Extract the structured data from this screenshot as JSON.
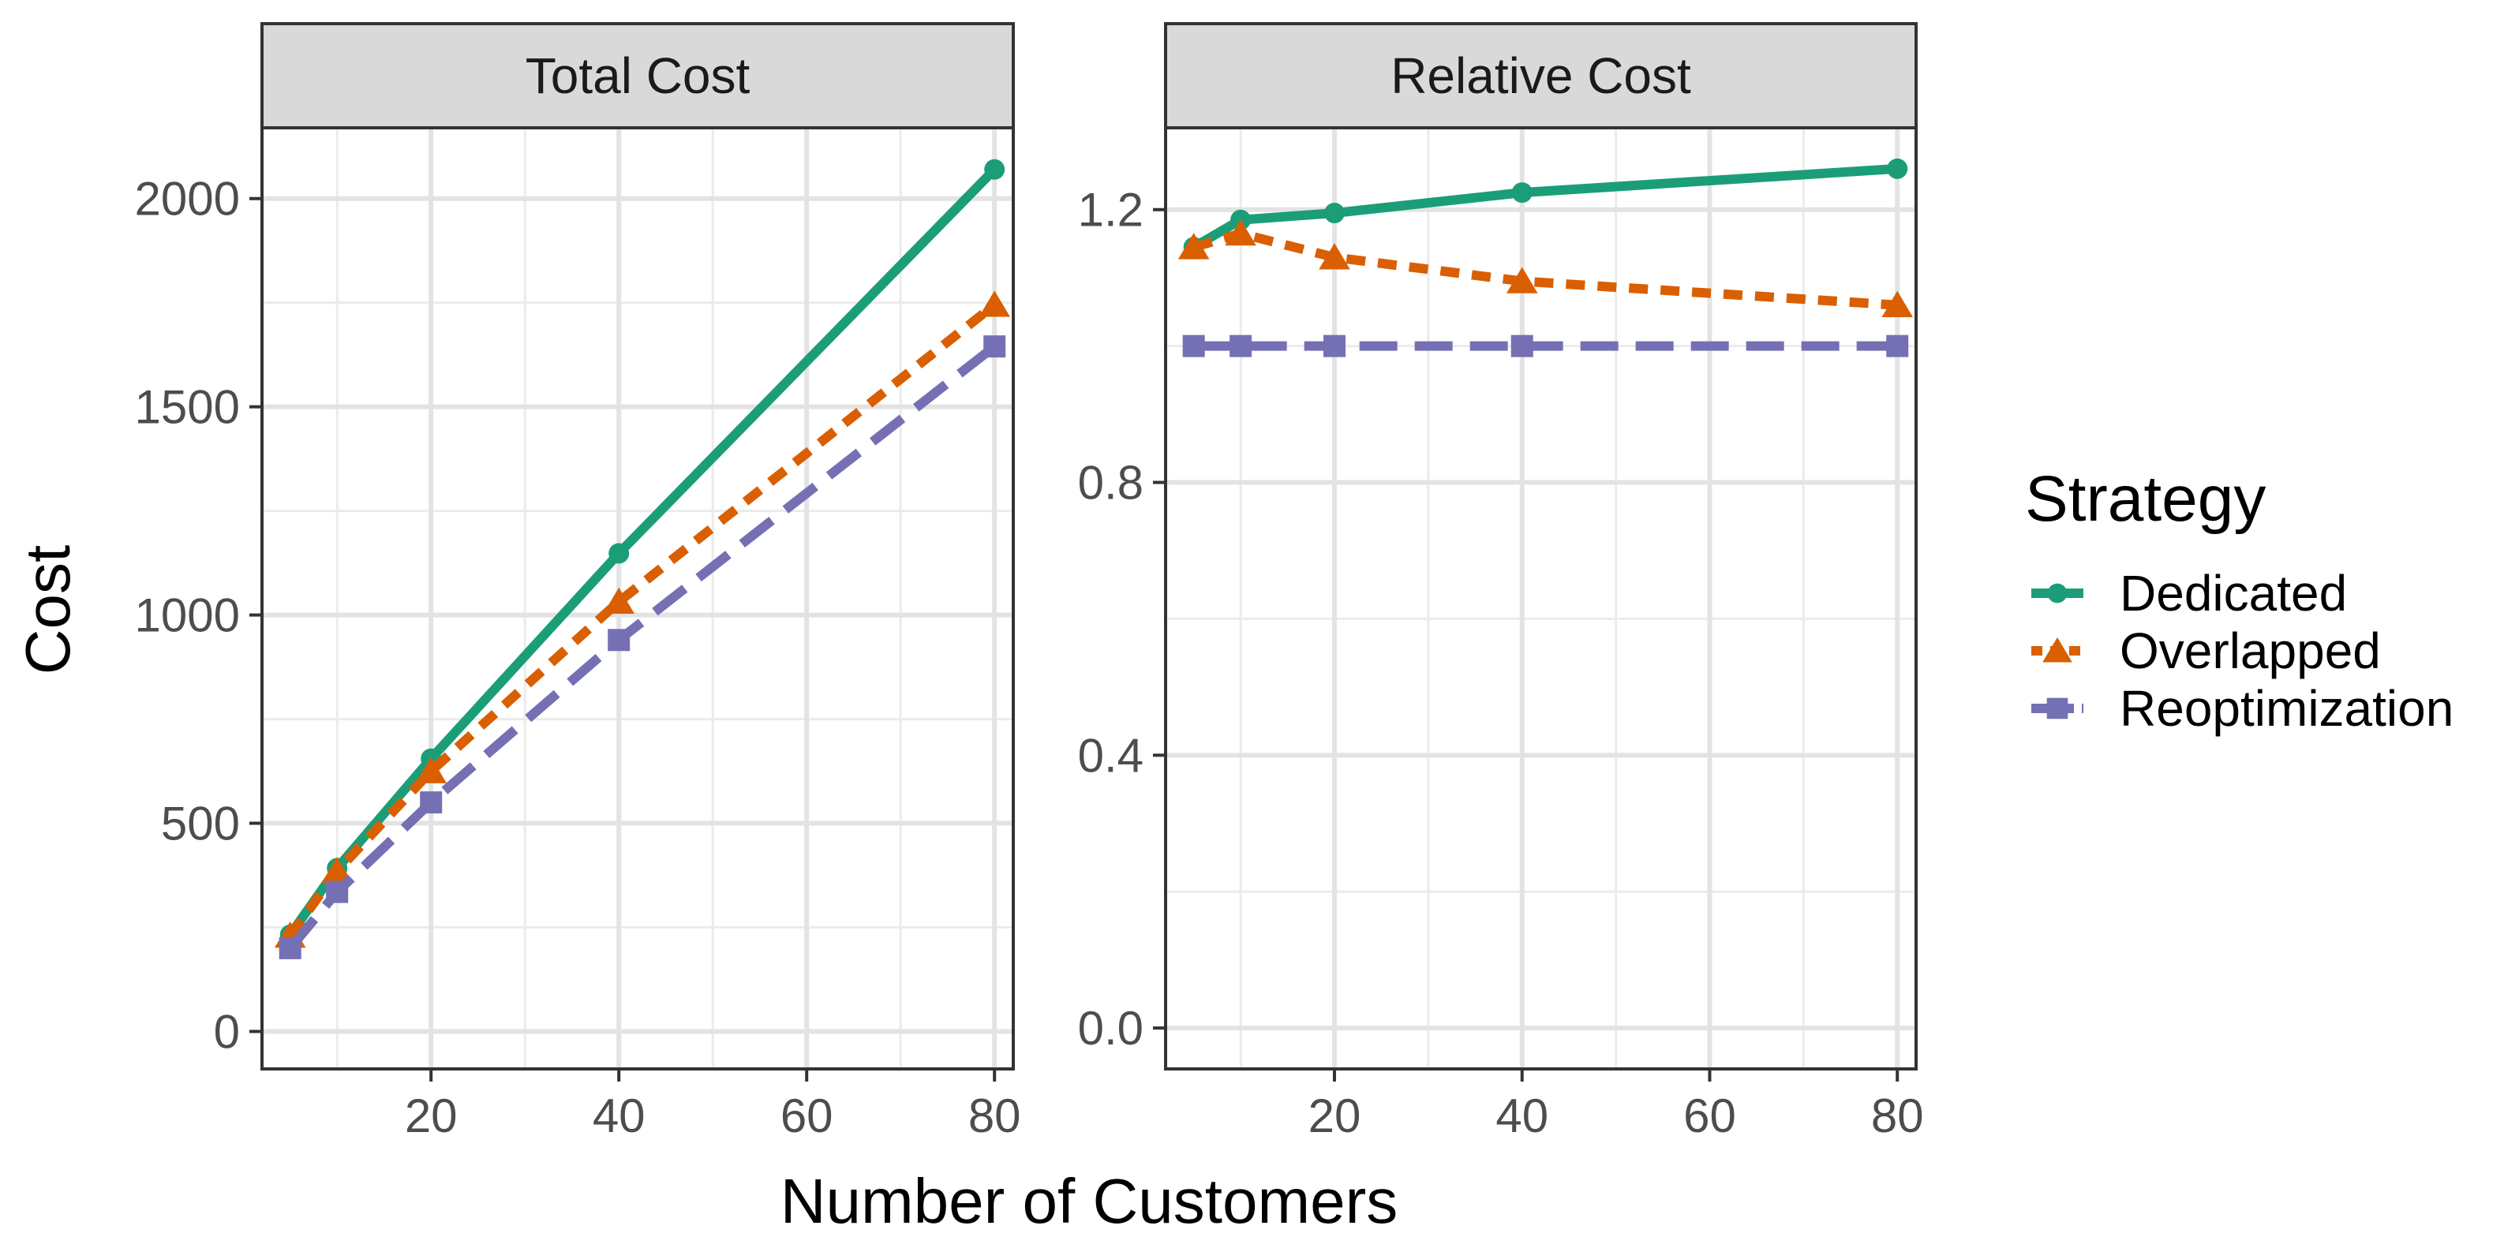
{
  "chart_data": {
    "type": "line",
    "xlabel": "Number of Customers",
    "ylabel": "Cost",
    "legend": {
      "title": "Strategy",
      "placement": "right",
      "entries": [
        "Dedicated",
        "Overlapped",
        "Reoptimization"
      ]
    },
    "colors": {
      "Dedicated": "#1b9e77",
      "Overlapped": "#d95f02",
      "Reoptimization": "#7570b3"
    },
    "grid": true,
    "x": [
      5,
      10,
      20,
      40,
      80
    ],
    "xlim": [
      2,
      82
    ],
    "x_ticks": [
      20,
      40,
      60,
      80
    ],
    "panels": [
      {
        "title": "Total Cost",
        "ylim": [
          -90,
          2170
        ],
        "y_ticks": [
          0,
          500,
          1000,
          1500,
          2000
        ],
        "y_tick_labels": [
          "0",
          "500",
          "1000",
          "1500",
          "2000"
        ],
        "series": [
          {
            "name": "Dedicated",
            "values": [
              232,
              392,
              655,
              1148,
              2070
            ]
          },
          {
            "name": "Overlapped",
            "values": [
              230,
              385,
              625,
              1032,
              1745
            ]
          },
          {
            "name": "Reoptimization",
            "values": [
              200,
              335,
              550,
              940,
              1645
            ]
          }
        ]
      },
      {
        "title": "Relative Cost",
        "ylim": [
          -0.06,
          1.32
        ],
        "y_ticks": [
          0.0,
          0.4,
          0.8,
          1.2
        ],
        "y_tick_labels": [
          "0.0",
          "0.4",
          "0.8",
          "1.2"
        ],
        "series": [
          {
            "name": "Dedicated",
            "values": [
              1.145,
              1.185,
              1.195,
              1.225,
              1.26
            ]
          },
          {
            "name": "Overlapped",
            "values": [
              1.145,
              1.165,
              1.13,
              1.095,
              1.06
            ]
          },
          {
            "name": "Reoptimization",
            "values": [
              1.0,
              1.0,
              1.0,
              1.0,
              1.0
            ]
          }
        ]
      }
    ]
  }
}
